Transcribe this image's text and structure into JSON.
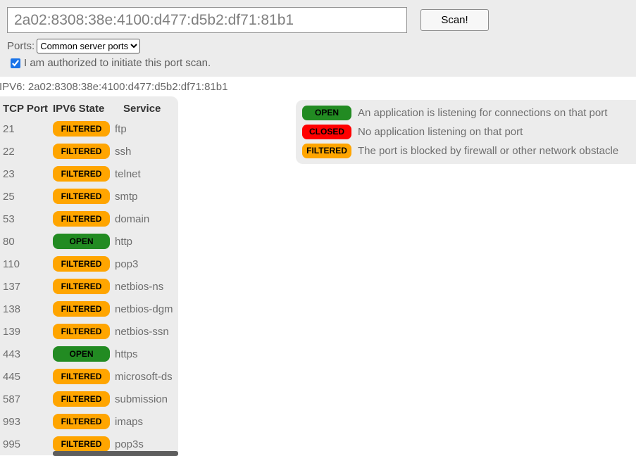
{
  "scan_form": {
    "ip_value": "2a02:8308:38e:4100:d477:d5b2:df71:81b1",
    "scan_button_label": "Scan!",
    "ports_label": "Ports:",
    "ports_selected_option": "Common server ports",
    "authorized_label": "I am authorized to initiate this port scan.",
    "authorized_checked": "checked"
  },
  "result_header": "IPV6: 2a02:8308:38e:4100:d477:d5b2:df71:81b1",
  "results_table": {
    "columns": [
      "TCP Port",
      "IPV6 State",
      "Service"
    ],
    "rows": [
      {
        "port": "21",
        "state": "FILTERED",
        "service": "ftp"
      },
      {
        "port": "22",
        "state": "FILTERED",
        "service": "ssh"
      },
      {
        "port": "23",
        "state": "FILTERED",
        "service": "telnet"
      },
      {
        "port": "25",
        "state": "FILTERED",
        "service": "smtp"
      },
      {
        "port": "53",
        "state": "FILTERED",
        "service": "domain"
      },
      {
        "port": "80",
        "state": "OPEN",
        "service": "http"
      },
      {
        "port": "110",
        "state": "FILTERED",
        "service": "pop3"
      },
      {
        "port": "137",
        "state": "FILTERED",
        "service": "netbios-ns"
      },
      {
        "port": "138",
        "state": "FILTERED",
        "service": "netbios-dgm"
      },
      {
        "port": "139",
        "state": "FILTERED",
        "service": "netbios-ssn"
      },
      {
        "port": "443",
        "state": "OPEN",
        "service": "https"
      },
      {
        "port": "445",
        "state": "FILTERED",
        "service": "microsoft-ds"
      },
      {
        "port": "587",
        "state": "FILTERED",
        "service": "submission"
      },
      {
        "port": "993",
        "state": "FILTERED",
        "service": "imaps"
      },
      {
        "port": "995",
        "state": "FILTERED",
        "service": "pop3s"
      }
    ]
  },
  "legend": {
    "items": [
      {
        "state": "OPEN",
        "description": "An application is listening for connections on that port"
      },
      {
        "state": "CLOSED",
        "description": "No application listening on that port"
      },
      {
        "state": "FILTERED",
        "description": "The port is blocked by firewall or other network obstacle"
      }
    ]
  },
  "state_colors": {
    "OPEN": "#228b22",
    "CLOSED": "#ff0000",
    "FILTERED": "#ffa500"
  },
  "colors": {
    "panel_bg": "#ececec",
    "checkbox_accent": "#1a73e8"
  }
}
